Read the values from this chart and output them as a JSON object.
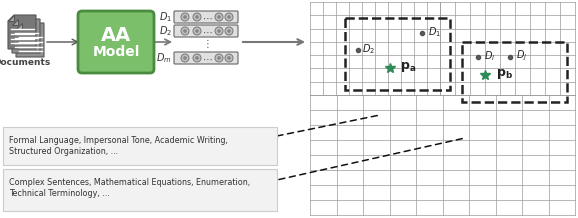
{
  "white": "#ffffff",
  "green_box": "#7bbf6a",
  "green_box_edge": "#4a8c3f",
  "green_star": "#2e8b57",
  "gray_doc": "#888888",
  "gray_dark": "#555555",
  "gray_light": "#bbbbbb",
  "grid_color": "#999999",
  "text_dark": "#222222",
  "text_box_bg": "#f2f2f2",
  "text_box_edge": "#cccccc",
  "documents_label": "Documents",
  "aa_line1": "AA",
  "aa_line2": "Model",
  "d_labels": [
    "D_1",
    "D_2",
    "D_m"
  ],
  "bottom_text1_line1": "Formal Language, Impersonal Tone, Academic Writing,",
  "bottom_text1_line2": "Structured Organization, ...",
  "bottom_text2_line1": "Complex Sentences, Mathematical Equations, Enumeration,",
  "bottom_text2_line2": "Technical Terminology, ..."
}
